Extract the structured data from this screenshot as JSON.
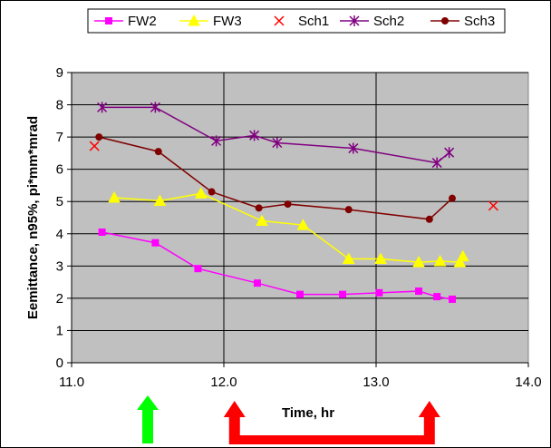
{
  "chart_data": {
    "type": "line",
    "title": "",
    "xlabel": "Time, hr",
    "ylabel": "Eemittance, n95%, pi*mm*mrad",
    "xlim": [
      11.0,
      14.0
    ],
    "ylim": [
      0,
      9
    ],
    "xticks": [
      "11.0",
      "12.0",
      "13.0",
      "14.0"
    ],
    "yticks": [
      "0",
      "1",
      "2",
      "3",
      "4",
      "5",
      "6",
      "7",
      "8",
      "9"
    ],
    "grid": "vertical and horizontal major lines",
    "plot_background": "#c0c0c0",
    "legend_position": "top",
    "series": [
      {
        "name": "FW2",
        "color": "#ff00ff",
        "marker": "square",
        "line": true,
        "x": [
          11.2,
          11.55,
          11.83,
          12.22,
          12.5,
          12.78,
          13.02,
          13.28,
          13.4,
          13.5
        ],
        "y": [
          4.05,
          3.72,
          2.92,
          2.47,
          2.12,
          2.12,
          2.17,
          2.22,
          2.05,
          1.97
        ]
      },
      {
        "name": "FW3",
        "color": "#ffff00",
        "marker": "triangle",
        "line": true,
        "x": [
          11.28,
          11.58,
          11.85,
          12.25,
          12.52,
          12.82,
          13.03,
          13.28,
          13.42,
          13.55,
          13.57
        ],
        "y": [
          5.12,
          5.02,
          5.25,
          4.4,
          4.27,
          3.22,
          3.22,
          3.12,
          3.15,
          3.12,
          3.3
        ]
      },
      {
        "name": "Sch1",
        "color": "#ff0000",
        "marker": "x",
        "line": false,
        "x": [
          11.15,
          13.77
        ],
        "y": [
          6.72,
          4.87
        ]
      },
      {
        "name": "Sch2",
        "color": "#800080",
        "marker": "star",
        "line": true,
        "x": [
          11.2,
          11.55,
          11.95,
          12.2,
          12.35,
          12.85,
          13.4,
          13.48
        ],
        "y": [
          7.92,
          7.92,
          6.88,
          7.05,
          6.82,
          6.65,
          6.2,
          6.52
        ]
      },
      {
        "name": "Sch3",
        "color": "#800000",
        "marker": "circle",
        "line": true,
        "x": [
          11.18,
          11.57,
          11.92,
          12.23,
          12.42,
          12.82,
          13.35,
          13.5
        ],
        "y": [
          7.0,
          6.55,
          5.3,
          4.8,
          4.92,
          4.75,
          4.45,
          5.1
        ]
      }
    ],
    "annotations": [
      {
        "type": "up-arrow",
        "color": "#00ff00",
        "x": 11.5
      },
      {
        "type": "bracket-arrows",
        "color": "#ff0000",
        "x_start": 12.07,
        "x_end": 13.35
      }
    ]
  }
}
